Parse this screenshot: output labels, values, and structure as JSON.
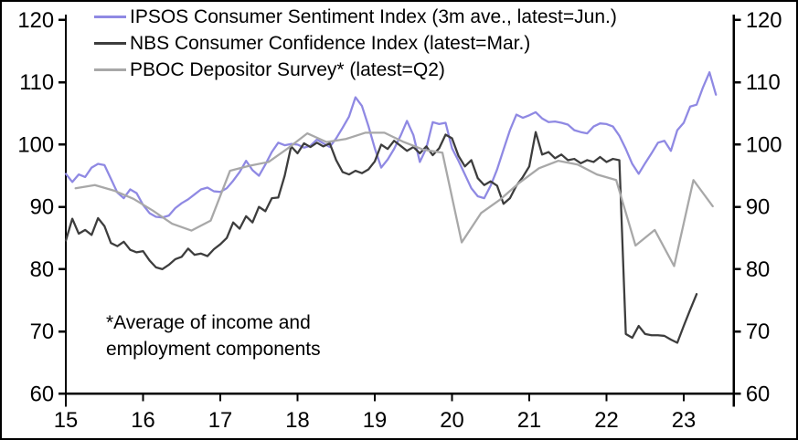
{
  "chart_data": {
    "type": "line",
    "title": "",
    "xlabel": "",
    "ylabel": "",
    "x_axis": {
      "ticks": [
        15,
        16,
        17,
        18,
        19,
        20,
        21,
        22,
        23
      ],
      "min": 15,
      "max": 23.65
    },
    "y_axis": {
      "ticks": [
        60,
        70,
        80,
        90,
        100,
        110,
        120
      ],
      "min": 60,
      "max": 120,
      "mirrored_right": true
    },
    "grid": false,
    "legend_position": "top-left",
    "colors": {
      "axis": "#000000",
      "ipsos": "#8f89e3",
      "nbs": "#3d3d3d",
      "pboc": "#a8a8a8"
    },
    "annotation": {
      "line1": "*Average of income and",
      "line2": "employment components"
    },
    "series": [
      {
        "name": "IPSOS Consumer Sentiment Index (3m ave., latest=Jun.)",
        "color": "#8f89e3",
        "frequency": "monthly",
        "x_start": 15.0,
        "x_step": 0.083333,
        "values": [
          95.3,
          94.0,
          95.2,
          94.8,
          96.3,
          96.9,
          96.7,
          94.5,
          92.3,
          91.4,
          92.8,
          92.2,
          90.3,
          89.0,
          88.4,
          88.3,
          88.6,
          89.8,
          90.6,
          91.2,
          92.0,
          92.8,
          93.1,
          92.5,
          92.4,
          93.0,
          94.2,
          95.6,
          97.4,
          95.9,
          95.0,
          96.8,
          98.8,
          100.3,
          99.9,
          100.1,
          100.0,
          99.5,
          99.8,
          100.8,
          100.2,
          99.6,
          101.0,
          102.7,
          104.5,
          107.6,
          106.2,
          103.0,
          99.4,
          96.3,
          97.6,
          99.3,
          101.4,
          103.8,
          101.5,
          97.2,
          99.4,
          103.6,
          103.3,
          103.5,
          99.4,
          97.4,
          95.2,
          93.0,
          91.7,
          91.4,
          93.4,
          96.0,
          99.2,
          102.3,
          104.8,
          104.3,
          104.7,
          105.2,
          104.2,
          103.6,
          103.7,
          103.5,
          103.2,
          102.3,
          102.0,
          101.8,
          102.9,
          103.4,
          103.3,
          102.9,
          101.4,
          99.3,
          96.9,
          95.3,
          97.0,
          98.6,
          100.3,
          100.6,
          99.0,
          102.3,
          103.5,
          106.1,
          106.4,
          109.2,
          111.6,
          108.0
        ]
      },
      {
        "name": "NBS Consumer Confidence Index (latest=Mar.)",
        "color": "#3d3d3d",
        "frequency": "monthly",
        "x_start": 15.0,
        "x_step": 0.083333,
        "values": [
          84.6,
          88.1,
          85.7,
          86.3,
          85.5,
          88.2,
          86.9,
          84.2,
          83.7,
          84.4,
          83.1,
          82.7,
          82.9,
          81.4,
          80.3,
          80.0,
          80.7,
          81.6,
          82.0,
          83.3,
          82.3,
          82.5,
          82.1,
          83.2,
          84.0,
          85.0,
          87.5,
          86.5,
          88.5,
          87.5,
          90.0,
          89.3,
          91.4,
          91.5,
          95.0,
          99.7,
          98.6,
          100.2,
          99.6,
          100.3,
          99.7,
          100.2,
          97.5,
          95.6,
          95.2,
          95.8,
          95.4,
          96.0,
          97.3,
          100.0,
          99.3,
          100.6,
          99.8,
          99.0,
          99.6,
          98.6,
          99.7,
          98.3,
          99.4,
          101.6,
          101.0,
          98.2,
          96.5,
          97.5,
          94.6,
          93.5,
          94.1,
          93.4,
          90.5,
          91.4,
          93.4,
          94.8,
          96.5,
          102.0,
          98.4,
          98.8,
          97.8,
          98.4,
          97.5,
          97.7,
          97.0,
          97.5,
          97.2,
          98.0,
          97.2,
          97.7,
          97.5,
          69.6,
          69.0,
          70.9,
          69.6,
          69.4,
          69.4,
          69.3,
          68.7,
          68.2,
          70.9,
          73.5,
          76.0
        ]
      },
      {
        "name": "PBOC Depositor Survey* (latest=Q2)",
        "color": "#a8a8a8",
        "frequency": "quarterly",
        "x_start": 15.125,
        "x_step": 0.25,
        "values": [
          93.0,
          93.5,
          92.6,
          91.3,
          89.4,
          87.3,
          86.2,
          87.8,
          95.8,
          96.6,
          97.2,
          99.4,
          101.8,
          100.4,
          100.9,
          101.9,
          101.9,
          100.4,
          99.2,
          98.7,
          84.3,
          89.0,
          91.2,
          93.9,
          96.2,
          97.4,
          96.8,
          95.2,
          94.3,
          83.8,
          86.3,
          80.5,
          94.3,
          90.1
        ]
      }
    ]
  },
  "legend": {
    "items": [
      {
        "label": "IPSOS Consumer Sentiment Index (3m ave., latest=Jun.)",
        "color": "#8f89e3"
      },
      {
        "label": "NBS Consumer Confidence Index (latest=Mar.)",
        "color": "#3d3d3d"
      },
      {
        "label": "PBOC Depositor Survey* (latest=Q2)",
        "color": "#a8a8a8"
      }
    ]
  }
}
